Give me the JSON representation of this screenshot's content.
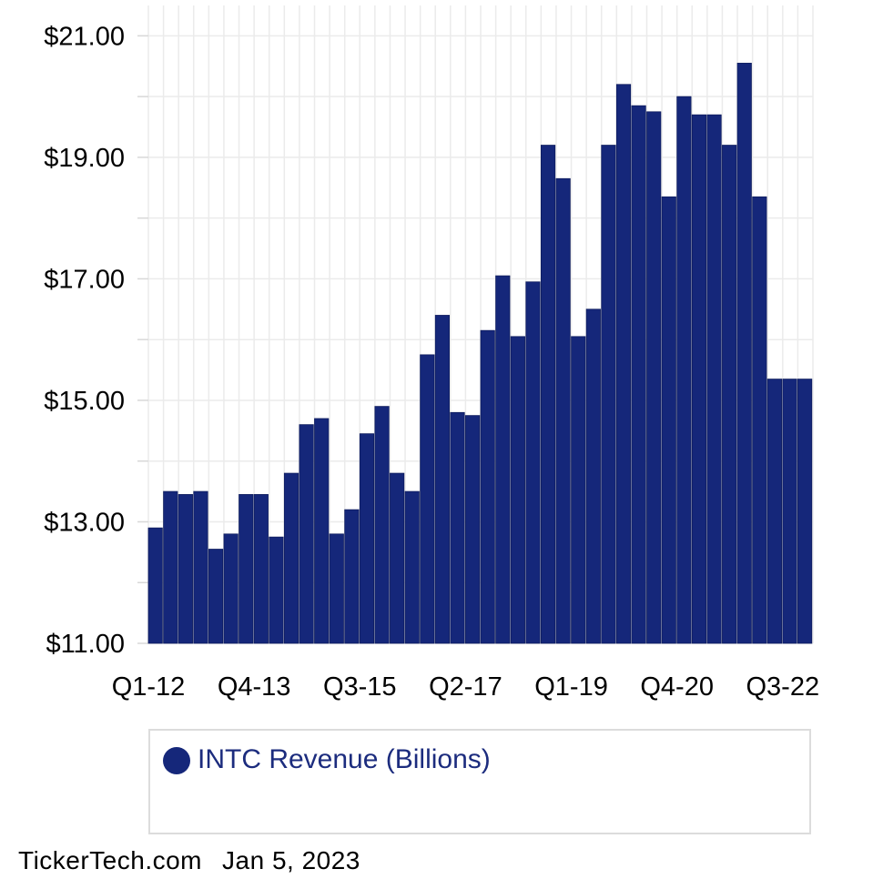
{
  "chart_data": {
    "type": "bar",
    "categories": [
      "Q1-12",
      "Q2-12",
      "Q3-12",
      "Q4-12",
      "Q1-13",
      "Q2-13",
      "Q3-13",
      "Q4-13",
      "Q1-14",
      "Q2-14",
      "Q3-14",
      "Q4-14",
      "Q1-15",
      "Q2-15",
      "Q3-15",
      "Q4-15",
      "Q1-16",
      "Q2-16",
      "Q3-16",
      "Q4-16",
      "Q1-17",
      "Q2-17",
      "Q3-17",
      "Q4-17",
      "Q1-18",
      "Q2-18",
      "Q3-18",
      "Q4-18",
      "Q1-19",
      "Q2-19",
      "Q3-19",
      "Q4-19",
      "Q1-20",
      "Q2-20",
      "Q3-20",
      "Q4-20",
      "Q1-21",
      "Q2-21",
      "Q3-21",
      "Q4-21",
      "Q1-22",
      "Q2-22",
      "Q3-22",
      "Q4-22"
    ],
    "series": [
      {
        "name": "INTC Revenue (Billions)",
        "values": [
          12.9,
          13.5,
          13.45,
          13.5,
          12.55,
          12.8,
          13.45,
          13.45,
          12.75,
          13.8,
          14.6,
          14.7,
          12.8,
          13.2,
          14.45,
          14.9,
          13.8,
          13.5,
          15.75,
          16.4,
          14.8,
          14.75,
          16.15,
          17.05,
          16.05,
          16.95,
          19.2,
          18.65,
          16.05,
          16.5,
          19.2,
          20.2,
          19.85,
          19.75,
          18.35,
          20.0,
          19.7,
          19.7,
          19.2,
          20.55,
          18.35,
          15.35,
          15.35,
          15.35
        ],
        "color": "#15277a"
      }
    ],
    "x_tick_labels": [
      "Q1-12",
      "Q4-13",
      "Q3-15",
      "Q2-17",
      "Q1-19",
      "Q4-20",
      "Q3-22"
    ],
    "y_tick_labels": [
      "$21.00",
      "$19.00",
      "$17.00",
      "$15.00",
      "$13.00",
      "$11.00"
    ],
    "ylim": [
      11,
      21.5
    ],
    "yticks": [
      11,
      13,
      15,
      17,
      19,
      21
    ],
    "grid": true,
    "legend_position": "bottom"
  },
  "colors": {
    "bar": "#15277a",
    "grid": "#ebebeb",
    "legend_text": "#1c2c7e"
  },
  "footer": {
    "source": "TickerTech.com",
    "date": "Jan 5, 2023"
  }
}
